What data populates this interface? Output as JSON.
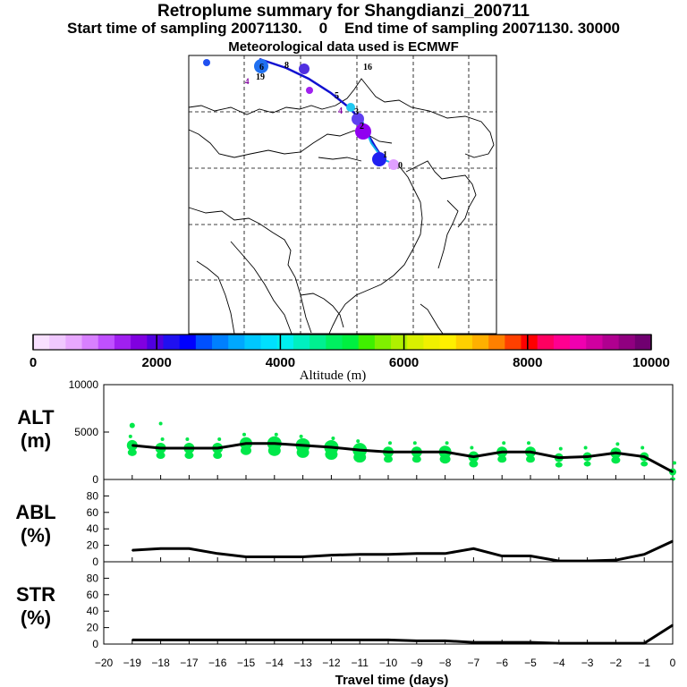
{
  "header": {
    "title": "Retroplume summary for Shangdianzi_200711",
    "sampling_start": "Start time of sampling 20071130.    0",
    "sampling_end": "End time of sampling 20071130. 30000",
    "met_data": "Meteorological data used is ECMWF"
  },
  "colors": {
    "trajectory_dark": "#1010d0",
    "trajectory_light": "#10b0f0",
    "particles": "#00e84a",
    "line": "#000000"
  },
  "chart_data": [
    {
      "type": "map",
      "title": "Retroplume trajectory map",
      "labels": [
        {
          "text": "0",
          "color": "#000000",
          "marker": "#e0a0ff"
        },
        {
          "text": "1",
          "color": "#000000",
          "marker": "#2020f0"
        },
        {
          "text": "2",
          "color": "#000000",
          "marker": "#9000f0"
        },
        {
          "text": "3",
          "color": "#000000",
          "marker": "#ffffff"
        },
        {
          "text": "4",
          "color": "#8000a0",
          "marker": "#ffffff"
        },
        {
          "text": "5",
          "color": "#000000",
          "marker": "#ffffff"
        },
        {
          "text": "6",
          "color": "#000000",
          "marker": "#2050f0"
        },
        {
          "text": "8",
          "color": "#000000",
          "marker": "#20c8f0"
        },
        {
          "text": "16",
          "color": "#000000",
          "marker": "#ffff00"
        },
        {
          "text": "19",
          "color": "#000000",
          "marker": "#ffff00"
        }
      ],
      "colorbar": {
        "title": "Altitude (m)",
        "ticks": [
          "0",
          "2000",
          "4000",
          "6000",
          "8000",
          "10000"
        ],
        "range": [
          0,
          10000
        ],
        "colors": [
          "#f8e0ff",
          "#f0c8ff",
          "#e8a8ff",
          "#d880ff",
          "#c050ff",
          "#a020f0",
          "#8000e0",
          "#5000e0",
          "#2010f0",
          "#0000ff",
          "#0050ff",
          "#0080ff",
          "#00a8ff",
          "#00c8ff",
          "#00e0ff",
          "#00f0f0",
          "#00f0c0",
          "#00f090",
          "#00f060",
          "#00f040",
          "#40f000",
          "#80f000",
          "#b0f000",
          "#d8f000",
          "#f0f000",
          "#fff000",
          "#ffd000",
          "#ffb000",
          "#ff8000",
          "#ff4000",
          "#ff0000",
          "#ff0060",
          "#ff0090",
          "#f000b0",
          "#d000a0",
          "#b00090",
          "#900080",
          "#700070"
        ]
      }
    },
    {
      "type": "line",
      "title": "ALT",
      "ylabel_line1": "ALT",
      "ylabel_line2": "(m)",
      "ylim": [
        0,
        10000
      ],
      "yticks": [
        "0",
        "5000",
        "10000"
      ],
      "x": [
        -19,
        -18,
        -17,
        -16,
        -15,
        -14,
        -13,
        -12,
        -11,
        -10,
        -9,
        -8,
        -7,
        -6,
        -5,
        -4,
        -3,
        -2,
        -1,
        0
      ],
      "values": [
        3600,
        3300,
        3300,
        3300,
        3800,
        3800,
        3600,
        3400,
        3100,
        2900,
        2900,
        2900,
        2400,
        2900,
        2900,
        2300,
        2400,
        2800,
        2400,
        800
      ]
    },
    {
      "type": "line",
      "title": "ABL",
      "ylabel_line1": "ABL",
      "ylabel_line2": "(%)",
      "ylim": [
        0,
        100
      ],
      "yticks": [
        "0",
        "20",
        "40",
        "60",
        "80"
      ],
      "x": [
        -19,
        -18,
        -17,
        -16,
        -15,
        -14,
        -13,
        -12,
        -11,
        -10,
        -9,
        -8,
        -7,
        -6,
        -5,
        -4,
        -3,
        -2,
        -1,
        0
      ],
      "values": [
        14,
        16,
        16,
        10,
        6,
        6,
        6,
        8,
        9,
        9,
        10,
        10,
        16,
        7,
        7,
        1,
        1,
        2,
        9,
        25
      ]
    },
    {
      "type": "line",
      "title": "STR",
      "ylabel_line1": "STR",
      "ylabel_line2": "(%)",
      "ylim": [
        0,
        100
      ],
      "yticks": [
        "0",
        "20",
        "40",
        "60",
        "80"
      ],
      "x": [
        -19,
        -18,
        -17,
        -16,
        -15,
        -14,
        -13,
        -12,
        -11,
        -10,
        -9,
        -8,
        -7,
        -6,
        -5,
        -4,
        -3,
        -2,
        -1,
        0
      ],
      "values": [
        5,
        5,
        5,
        5,
        5,
        5,
        5,
        5,
        5,
        5,
        4,
        4,
        2,
        2,
        2,
        1,
        1,
        1,
        1,
        23
      ],
      "xlabel": "Travel time (days)",
      "xticks": [
        "−20",
        "−19",
        "−18",
        "−17",
        "−16",
        "−15",
        "−14",
        "−13",
        "−12",
        "−11",
        "−10",
        "−9",
        "−8",
        "−7",
        "−6",
        "−5",
        "−4",
        "−3",
        "−2",
        "−1",
        "0"
      ],
      "xlim": [
        -20,
        0
      ]
    }
  ]
}
